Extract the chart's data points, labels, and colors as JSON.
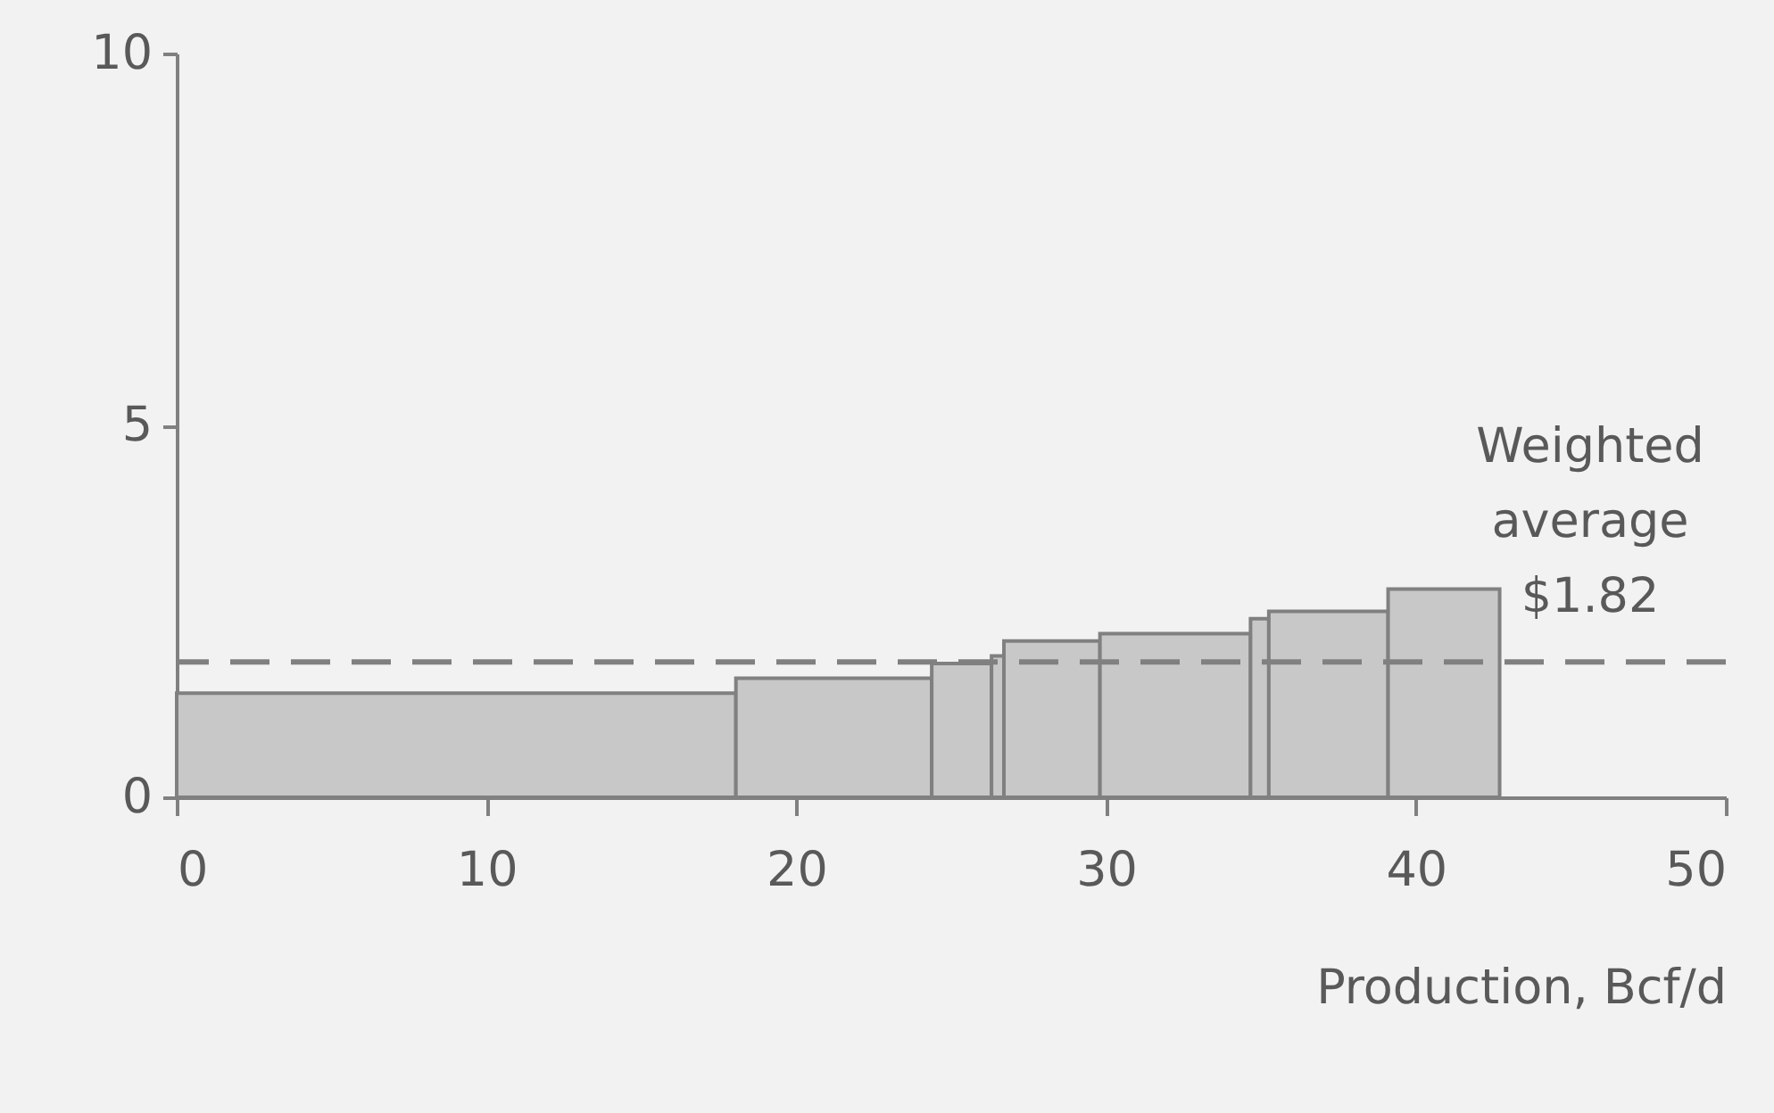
{
  "chart_data": {
    "type": "histogram",
    "xlabel": "Production, Bcf/d",
    "bins": [
      0,
      18.05,
      24.37,
      26.3,
      26.7,
      29.8,
      34.66,
      35.25,
      39.1,
      42.7
    ],
    "values": [
      1.4,
      1.6,
      1.8,
      1.9,
      2.1,
      2.2,
      2.4,
      2.5,
      2.8
    ],
    "color": "#c8c8c8",
    "xlim": [
      0,
      50
    ],
    "xticks": [
      0,
      10,
      20,
      30,
      40,
      50
    ],
    "ylim": [
      0,
      10
    ],
    "yticks": [
      0,
      5,
      10
    ],
    "ref_lines": [
      {
        "axis": "y",
        "value": 1.82,
        "label": "Weighted average $1.82",
        "color": "#808080",
        "line_style": "dashed"
      }
    ]
  }
}
